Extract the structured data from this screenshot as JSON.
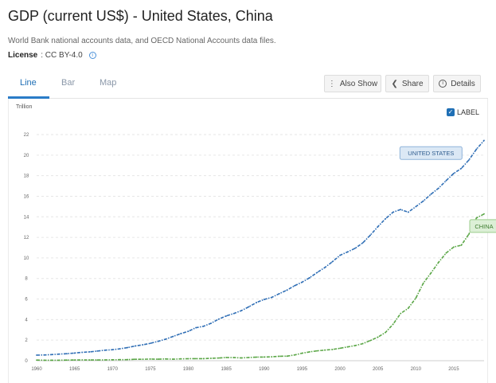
{
  "header": {
    "title": "GDP (current US$) - United States, China",
    "source": "World Bank national accounts data, and OECD National Accounts data files.",
    "license_label": "License",
    "license_value": ": CC BY-4.0"
  },
  "tabs": [
    {
      "label": "Line",
      "active": true
    },
    {
      "label": "Bar",
      "active": false
    },
    {
      "label": "Map",
      "active": false
    }
  ],
  "toolbar": {
    "also_show": "Also Show",
    "share": "Share",
    "details": "Details"
  },
  "label_toggle": {
    "text": "LABEL",
    "checked": true
  },
  "colors": {
    "us": "#2f6eb5",
    "china": "#5aa646",
    "accent": "#1f6fb5"
  },
  "chart_data": {
    "type": "line",
    "title": "GDP (current US$) - United States, China",
    "ylabel": "Trillion",
    "xlabel": "",
    "xlim": [
      1960,
      2019
    ],
    "ylim": [
      0,
      22
    ],
    "y_ticks": [
      0,
      2,
      4,
      6,
      8,
      10,
      12,
      14,
      16,
      18,
      20,
      22
    ],
    "x_ticks": [
      1960,
      1965,
      1970,
      1975,
      1980,
      1985,
      1990,
      1995,
      2000,
      2005,
      2010,
      2015
    ],
    "grid": true,
    "legend": "inline labels",
    "x": [
      1960,
      1961,
      1962,
      1963,
      1964,
      1965,
      1966,
      1967,
      1968,
      1969,
      1970,
      1971,
      1972,
      1973,
      1974,
      1975,
      1976,
      1977,
      1978,
      1979,
      1980,
      1981,
      1982,
      1983,
      1984,
      1985,
      1986,
      1987,
      1988,
      1989,
      1990,
      1991,
      1992,
      1993,
      1994,
      1995,
      1996,
      1997,
      1998,
      1999,
      2000,
      2001,
      2002,
      2003,
      2004,
      2005,
      2006,
      2007,
      2008,
      2009,
      2010,
      2011,
      2012,
      2013,
      2014,
      2015,
      2016,
      2017,
      2018,
      2019
    ],
    "series": [
      {
        "name": "UNITED STATES",
        "color": "#2f6eb5",
        "values": [
          0.54,
          0.56,
          0.6,
          0.64,
          0.68,
          0.74,
          0.81,
          0.86,
          0.94,
          1.02,
          1.07,
          1.16,
          1.28,
          1.43,
          1.55,
          1.69,
          1.88,
          2.09,
          2.36,
          2.63,
          2.86,
          3.21,
          3.35,
          3.64,
          4.04,
          4.35,
          4.59,
          4.87,
          5.25,
          5.66,
          5.96,
          6.16,
          6.52,
          6.86,
          7.29,
          7.64,
          8.07,
          8.58,
          9.06,
          9.63,
          10.25,
          10.58,
          10.94,
          11.46,
          12.21,
          13.04,
          13.81,
          14.45,
          14.71,
          14.45,
          14.99,
          15.54,
          16.2,
          16.78,
          17.52,
          18.22,
          18.71,
          19.52,
          20.58,
          21.43
        ]
      },
      {
        "name": "CHINA",
        "color": "#5aa646",
        "values": [
          0.06,
          0.05,
          0.05,
          0.05,
          0.06,
          0.07,
          0.08,
          0.07,
          0.07,
          0.08,
          0.09,
          0.1,
          0.11,
          0.14,
          0.14,
          0.16,
          0.15,
          0.17,
          0.15,
          0.18,
          0.19,
          0.2,
          0.2,
          0.23,
          0.26,
          0.31,
          0.3,
          0.27,
          0.31,
          0.35,
          0.36,
          0.38,
          0.43,
          0.44,
          0.56,
          0.73,
          0.86,
          0.96,
          1.03,
          1.09,
          1.21,
          1.34,
          1.47,
          1.66,
          1.96,
          2.29,
          2.75,
          3.55,
          4.59,
          5.1,
          6.09,
          7.55,
          8.53,
          9.57,
          10.48,
          11.06,
          11.23,
          12.31,
          13.89,
          14.28
        ]
      }
    ]
  }
}
